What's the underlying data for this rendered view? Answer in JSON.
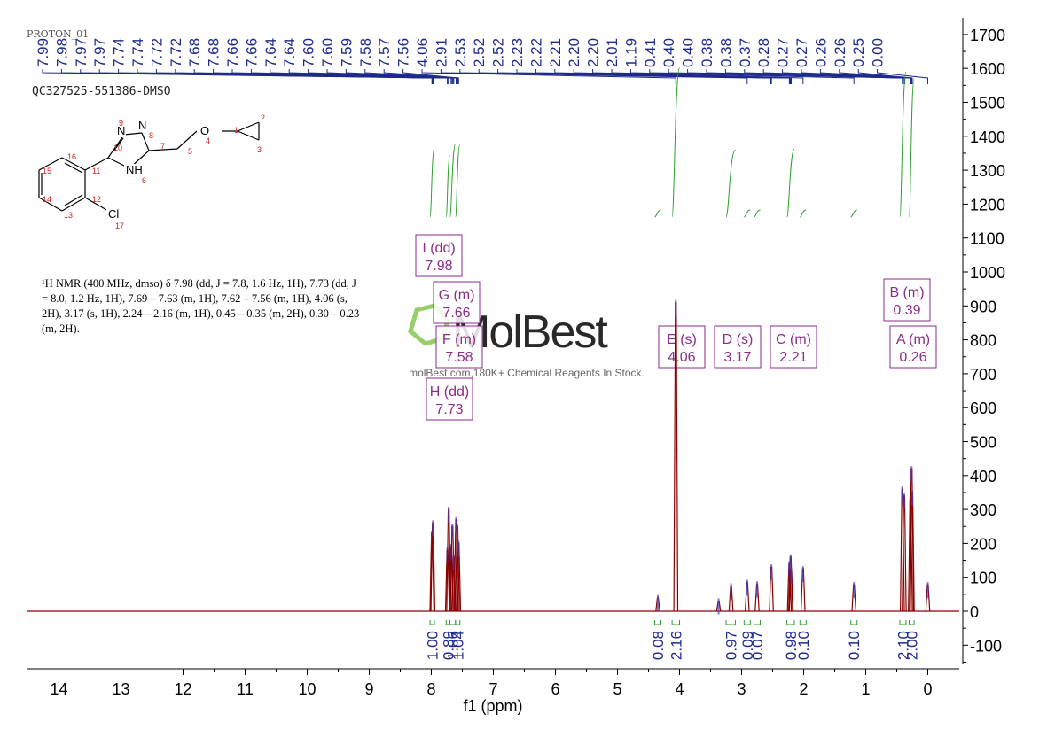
{
  "spectrum_label": "PROTON_01",
  "sample_name": "QC327525-551386-DMSO",
  "watermark": {
    "logo_text": "MolBest",
    "tagline": "molBest.com,180K+ Chemical Reagents In Stock.",
    "color": "#7dc242"
  },
  "nmr_description": "¹H NMR (400 MHz, dmso) δ 7.98 (dd, J = 7.8, 1.6 Hz, 1H), 7.73 (dd, J = 8.0, 1.2 Hz, 1H), 7.69 – 7.63 (m, 1H), 7.62 – 7.56 (m, 1H), 4.06 (s, 2H), 3.17 (s, 1H), 2.24 – 2.16 (m, 1H), 0.45 – 0.35 (m, 2H), 0.30 – 0.23 (m, 2H).",
  "molecule": {
    "atom_labels": [
      "N",
      "N",
      "NH",
      "O",
      "Cl"
    ],
    "numbers": [
      "1",
      "2",
      "3",
      "4",
      "5",
      "6",
      "7",
      "8",
      "9",
      "10",
      "11",
      "12",
      "13",
      "14",
      "15",
      "16",
      "17"
    ]
  },
  "colors": {
    "spectrum": "#8b0000",
    "peak_labels": "#1f2a8c",
    "integral": "#2e9e2e",
    "multiplet": "#8b2d8b",
    "atom_numbers": "#cc2222"
  },
  "chart_data": {
    "type": "line",
    "xlabel": "f1 (ppm)",
    "ylabel": "",
    "xlim": [
      14.5,
      -0.5
    ],
    "ylim": [
      -150,
      1700
    ],
    "x_ticks": [
      14,
      13,
      12,
      11,
      10,
      9,
      8,
      7,
      6,
      5,
      4,
      3,
      2,
      1,
      0
    ],
    "y_ticks": [
      1700,
      1600,
      1500,
      1400,
      1300,
      1200,
      1100,
      1000,
      900,
      800,
      700,
      600,
      500,
      400,
      300,
      200,
      100,
      0,
      -100
    ],
    "peak_list": [
      "7.99",
      "7.98",
      "7.97",
      "7.97",
      "7.74",
      "7.74",
      "7.72",
      "7.72",
      "7.68",
      "7.68",
      "7.66",
      "7.66",
      "7.64",
      "7.64",
      "7.60",
      "7.60",
      "7.59",
      "7.58",
      "7.57",
      "7.56",
      "4.06",
      "2.91",
      "2.53",
      "2.52",
      "2.52",
      "2.23",
      "2.22",
      "2.21",
      "2.20",
      "2.20",
      "2.01",
      "1.19",
      "0.41",
      "0.40",
      "0.40",
      "0.38",
      "0.38",
      "0.37",
      "0.28",
      "0.27",
      "0.27",
      "0.26",
      "0.26",
      "0.25",
      "0.00"
    ],
    "peaks": [
      {
        "x": 7.99,
        "h": 230
      },
      {
        "x": 7.975,
        "h": 260
      },
      {
        "x": 7.74,
        "h": 180
      },
      {
        "x": 7.72,
        "h": 300
      },
      {
        "x": 7.68,
        "h": 190
      },
      {
        "x": 7.66,
        "h": 250
      },
      {
        "x": 7.64,
        "h": 160
      },
      {
        "x": 7.6,
        "h": 270
      },
      {
        "x": 7.58,
        "h": 250
      },
      {
        "x": 7.56,
        "h": 200
      },
      {
        "x": 4.35,
        "h": 40
      },
      {
        "x": 4.06,
        "h": 910
      },
      {
        "x": 3.37,
        "h": 30
      },
      {
        "x": 3.17,
        "h": 75
      },
      {
        "x": 2.91,
        "h": 85
      },
      {
        "x": 2.75,
        "h": 80
      },
      {
        "x": 2.52,
        "h": 130
      },
      {
        "x": 2.23,
        "h": 140
      },
      {
        "x": 2.21,
        "h": 160
      },
      {
        "x": 2.2,
        "h": 120
      },
      {
        "x": 2.01,
        "h": 125
      },
      {
        "x": 1.19,
        "h": 78
      },
      {
        "x": 0.41,
        "h": 360
      },
      {
        "x": 0.38,
        "h": 340
      },
      {
        "x": 0.28,
        "h": 330
      },
      {
        "x": 0.26,
        "h": 420
      },
      {
        "x": 0.25,
        "h": 350
      },
      {
        "x": 0.0,
        "h": 78
      }
    ],
    "multiplets": [
      {
        "letter": "I",
        "type": "dd",
        "shift": "7.98"
      },
      {
        "letter": "G",
        "type": "m",
        "shift": "7.66"
      },
      {
        "letter": "F",
        "type": "m",
        "shift": "7.58"
      },
      {
        "letter": "H",
        "type": "dd",
        "shift": "7.73"
      },
      {
        "letter": "E",
        "type": "s",
        "shift": "4.06"
      },
      {
        "letter": "D",
        "type": "s",
        "shift": "3.17"
      },
      {
        "letter": "C",
        "type": "m",
        "shift": "2.21"
      },
      {
        "letter": "B",
        "type": "m",
        "shift": "0.39"
      },
      {
        "letter": "A",
        "type": "m",
        "shift": "0.26"
      }
    ],
    "integrals": [
      {
        "x1": 8.02,
        "x2": 7.95,
        "value": "1.00"
      },
      {
        "x1": 7.76,
        "x2": 7.7,
        "value": "0.89"
      },
      {
        "x1": 7.7,
        "x2": 7.61,
        "value": "1.06"
      },
      {
        "x1": 7.61,
        "x2": 7.54,
        "value": "1.04"
      },
      {
        "x1": 4.4,
        "x2": 4.3,
        "value": "0.08"
      },
      {
        "x1": 4.12,
        "x2": 4.0,
        "value": "2.16"
      },
      {
        "x1": 3.25,
        "x2": 3.1,
        "value": "0.97"
      },
      {
        "x1": 2.96,
        "x2": 2.86,
        "value": "0.09"
      },
      {
        "x1": 2.8,
        "x2": 2.7,
        "value": "0.07"
      },
      {
        "x1": 2.27,
        "x2": 2.15,
        "value": "0.98"
      },
      {
        "x1": 2.06,
        "x2": 1.96,
        "value": "0.10"
      },
      {
        "x1": 1.24,
        "x2": 1.14,
        "value": "0.10"
      },
      {
        "x1": 0.45,
        "x2": 0.35,
        "value": "2.10"
      },
      {
        "x1": 0.3,
        "x2": 0.22,
        "value": "2.00"
      }
    ]
  }
}
